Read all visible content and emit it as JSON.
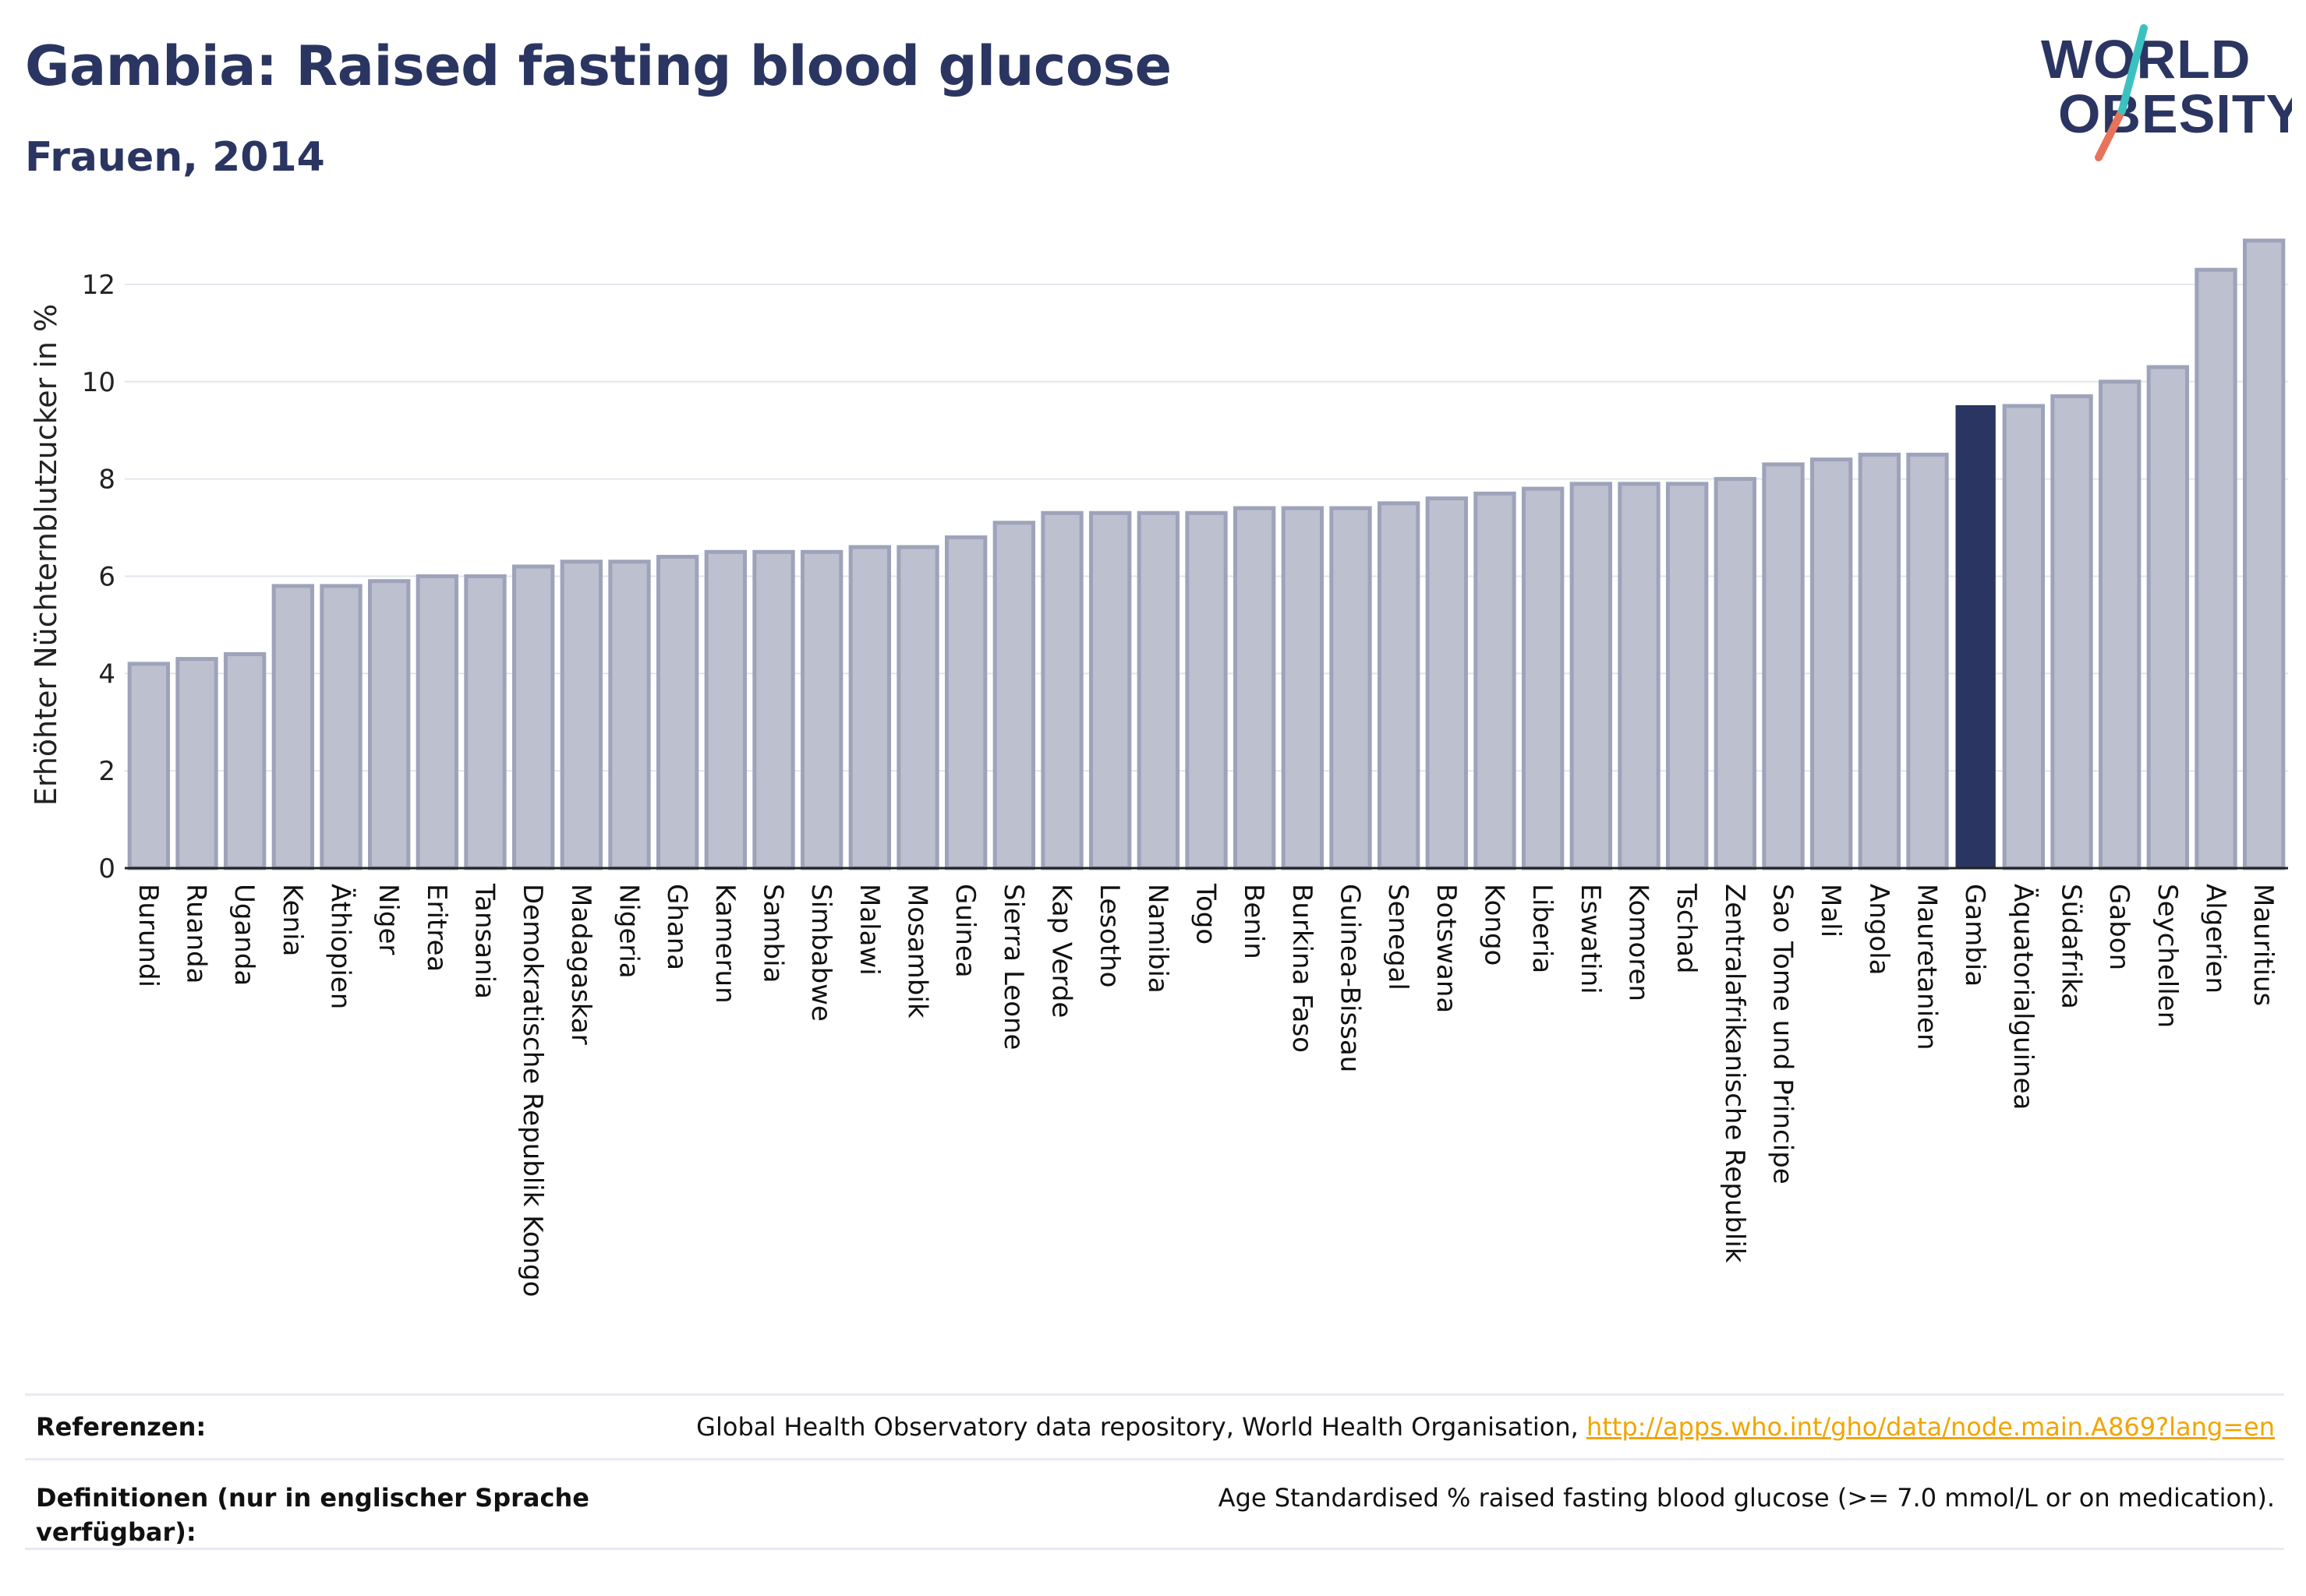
{
  "header": {
    "title": "Gambia: Raised fasting blood glucose",
    "subtitle": "Frauen, 2014"
  },
  "logo": {
    "line1": "WORLD",
    "line2": "OBESITY"
  },
  "colors": {
    "title": "#2b3561",
    "bar": "#bcc0cf",
    "bar_border": "#9ea3ba",
    "highlight": "#2b3561",
    "link": "#f0a500"
  },
  "chart_data": {
    "type": "bar",
    "ylabel": "Erhöhter Nüchternblutzucker in %",
    "xlabel": "",
    "ylim": [
      0,
      13.2
    ],
    "yticks": [
      0,
      2,
      4,
      6,
      8,
      10,
      12
    ],
    "grid": true,
    "highlight": "Gambia",
    "categories": [
      "Burundi",
      "Ruanda",
      "Uganda",
      "Kenia",
      "Äthiopien",
      "Niger",
      "Eritrea",
      "Tansania",
      "Demokratische Republik Kongo",
      "Madagaskar",
      "Nigeria",
      "Ghana",
      "Kamerun",
      "Sambia",
      "Simbabwe",
      "Malawi",
      "Mosambik",
      "Guinea",
      "Sierra Leone",
      "Kap Verde",
      "Lesotho",
      "Namibia",
      "Togo",
      "Benin",
      "Burkina Faso",
      "Guinea-Bissau",
      "Senegal",
      "Botswana",
      "Kongo",
      "Liberia",
      "Eswatini",
      "Komoren",
      "Tschad",
      "Zentralafrikanische Republik",
      "Sao Tome und Principe",
      "Mali",
      "Angola",
      "Mauretanien",
      "Gambia",
      "Äquatorialguinea",
      "Südafrika",
      "Gabon",
      "Seychellen",
      "Algerien",
      "Mauritius"
    ],
    "values": [
      4.2,
      4.3,
      4.4,
      5.8,
      5.8,
      5.9,
      6.0,
      6.0,
      6.2,
      6.3,
      6.3,
      6.4,
      6.5,
      6.5,
      6.5,
      6.6,
      6.6,
      6.8,
      7.1,
      7.3,
      7.3,
      7.3,
      7.3,
      7.4,
      7.4,
      7.4,
      7.5,
      7.6,
      7.7,
      7.8,
      7.9,
      7.9,
      7.9,
      8.0,
      8.3,
      8.4,
      8.5,
      8.5,
      9.5,
      9.5,
      9.7,
      10.0,
      10.3,
      12.3,
      12.9
    ]
  },
  "references": {
    "ref_label": "Referenzen:",
    "ref_text": "Global Health Observatory data repository, World Health Organisation, ",
    "ref_link": "http://apps.who.int/gho/data/node.main.A869?lang=en",
    "def_label": "Definitionen (nur in englischer Sprache verfügbar):",
    "def_text": "Age Standardised % raised fasting blood glucose (>= 7.0 mmol/L or on medication)."
  }
}
